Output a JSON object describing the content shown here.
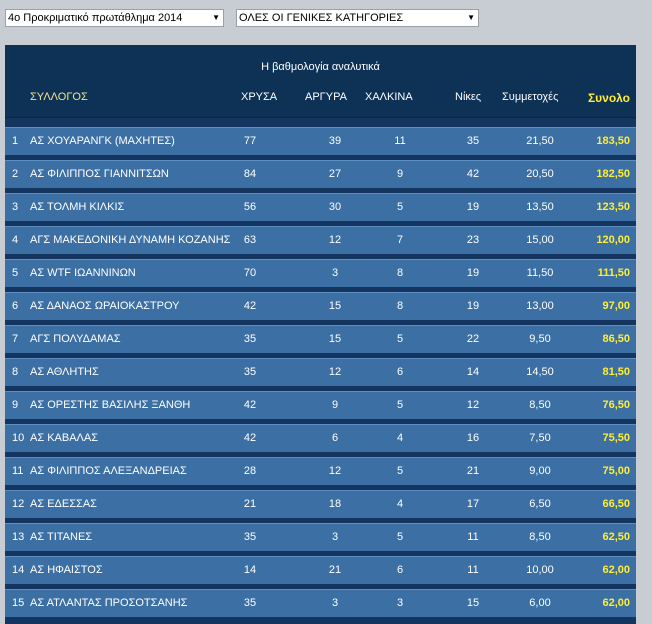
{
  "filters": {
    "championship": "4ο Προκριματικό πρωτάθλημα 2014",
    "category": "ΟΛΕΣ ΟΙ ΓΕΝΙΚΕΣ ΚΑΤΗΓΟΡΙΕΣ"
  },
  "table": {
    "title": "Η βαθμολογία αναλυτικά",
    "headers": {
      "club": "ΣΥΛΛΟΓΟΣ",
      "gold": "ΧΡΥΣΑ",
      "silver": "ΑΡΓΥΡΑ",
      "bronze": "ΧΑΛΚΙΝΑ",
      "wins": "Νίκες",
      "participations": "Συμμετοχές",
      "total": "Συνολο"
    },
    "rows": [
      {
        "rank": "1",
        "club": "ΑΣ ΧΟΥΑΡΑΝΓΚ (ΜΑΧΗΤΕΣ)",
        "gold": "77",
        "silver": "39",
        "bronze": "11",
        "wins": "35",
        "part": "21,50",
        "total": "183,50"
      },
      {
        "rank": "2",
        "club": "ΑΣ ΦΙΛΙΠΠΟΣ ΓΙΑΝΝΙΤΣΩΝ",
        "gold": "84",
        "silver": "27",
        "bronze": "9",
        "wins": "42",
        "part": "20,50",
        "total": "182,50"
      },
      {
        "rank": "3",
        "club": "ΑΣ ΤΟΛΜΗ ΚΙΛΚΙΣ",
        "gold": "56",
        "silver": "30",
        "bronze": "5",
        "wins": "19",
        "part": "13,50",
        "total": "123,50"
      },
      {
        "rank": "4",
        "club": "ΑΓΣ ΜΑΚΕΔΟΝΙΚΗ ΔΥΝΑΜΗ ΚΟΖΑΝΗΣ",
        "gold": "63",
        "silver": "12",
        "bronze": "7",
        "wins": "23",
        "part": "15,00",
        "total": "120,00"
      },
      {
        "rank": "5",
        "club": "ΑΣ WTF ΙΩΑΝΝΙΝΩΝ",
        "gold": "70",
        "silver": "3",
        "bronze": "8",
        "wins": "19",
        "part": "11,50",
        "total": "111,50"
      },
      {
        "rank": "6",
        "club": "ΑΣ ΔΑΝΑΟΣ ΩΡΑΙΟΚΑΣΤΡΟΥ",
        "gold": "42",
        "silver": "15",
        "bronze": "8",
        "wins": "19",
        "part": "13,00",
        "total": "97,00"
      },
      {
        "rank": "7",
        "club": "ΑΓΣ ΠΟΛΥΔΑΜΑΣ",
        "gold": "35",
        "silver": "15",
        "bronze": "5",
        "wins": "22",
        "part": "9,50",
        "total": "86,50"
      },
      {
        "rank": "8",
        "club": "ΑΣ ΑΘΛΗΤΗΣ",
        "gold": "35",
        "silver": "12",
        "bronze": "6",
        "wins": "14",
        "part": "14,50",
        "total": "81,50"
      },
      {
        "rank": "9",
        "club": "ΑΣ ΟΡΕΣΤΗΣ ΒΑΣΙΛΗΣ ΞΑΝΘΗ",
        "gold": "42",
        "silver": "9",
        "bronze": "5",
        "wins": "12",
        "part": "8,50",
        "total": "76,50"
      },
      {
        "rank": "10",
        "club": "ΑΣ ΚΑΒΑΛΑΣ",
        "gold": "42",
        "silver": "6",
        "bronze": "4",
        "wins": "16",
        "part": "7,50",
        "total": "75,50"
      },
      {
        "rank": "11",
        "club": "ΑΣ ΦΙΛΙΠΠΟΣ ΑΛΕΞΑΝΔΡΕΙΑΣ",
        "gold": "28",
        "silver": "12",
        "bronze": "5",
        "wins": "21",
        "part": "9,00",
        "total": "75,00"
      },
      {
        "rank": "12",
        "club": "ΑΣ ΕΔΕΣΣΑΣ",
        "gold": "21",
        "silver": "18",
        "bronze": "4",
        "wins": "17",
        "part": "6,50",
        "total": "66,50"
      },
      {
        "rank": "13",
        "club": "ΑΣ ΤΙΤΑΝΕΣ",
        "gold": "35",
        "silver": "3",
        "bronze": "5",
        "wins": "11",
        "part": "8,50",
        "total": "62,50"
      },
      {
        "rank": "14",
        "club": "ΑΣ ΗΦΑΙΣΤΟΣ",
        "gold": "14",
        "silver": "21",
        "bronze": "6",
        "wins": "11",
        "part": "10,00",
        "total": "62,00"
      },
      {
        "rank": "15",
        "club": "ΑΣ ΑΤΛΑΝΤΑΣ ΠΡΟΣΟΤΣΑΝΗΣ",
        "gold": "35",
        "silver": "3",
        "bronze": "3",
        "wins": "15",
        "part": "6,00",
        "total": "62,00"
      }
    ]
  },
  "colors": {
    "header_bg": "#0e3156",
    "row_bg": "#3c6fa4",
    "total_text": "#ffee33",
    "page_bg": "#c7cdd3"
  }
}
